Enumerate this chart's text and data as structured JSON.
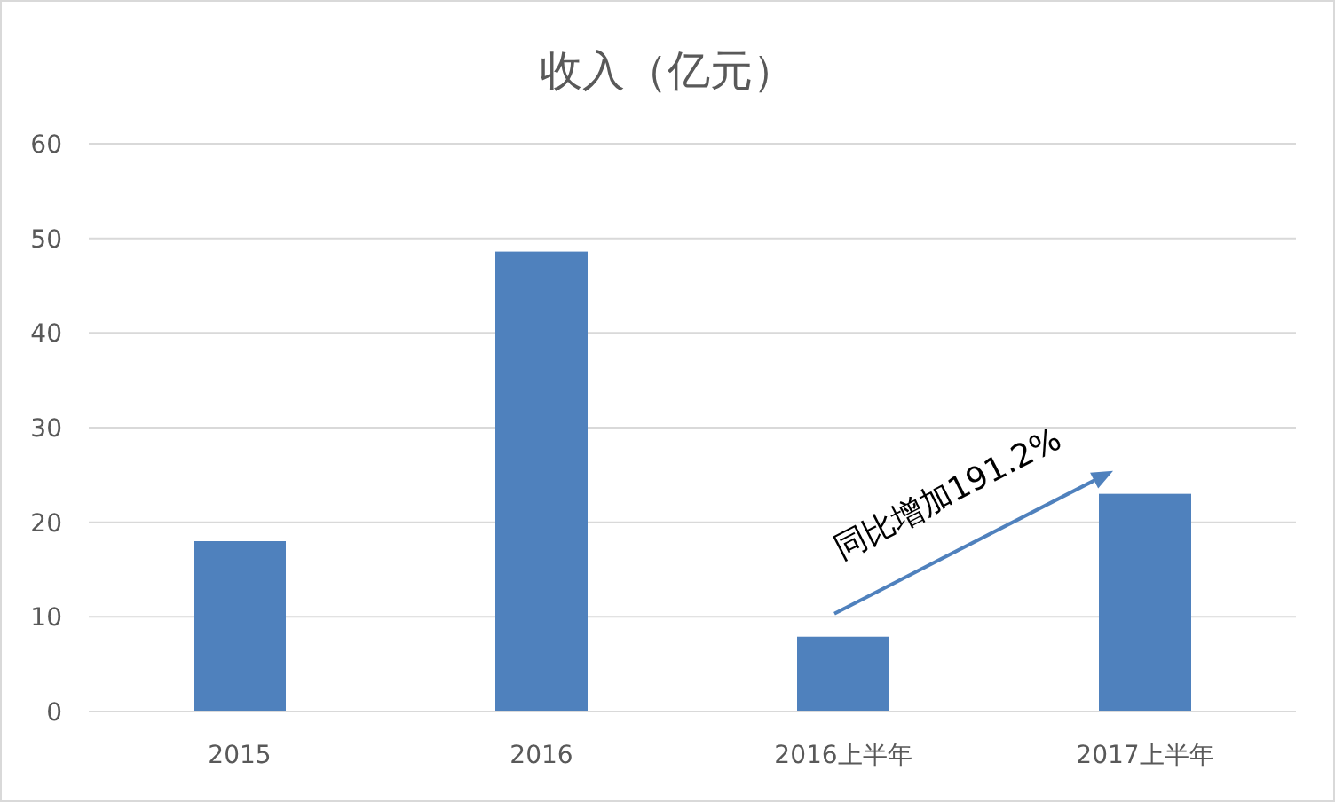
{
  "chart_data": {
    "type": "bar",
    "title": "收入（亿元）",
    "categories": [
      "2015",
      "2016",
      "2016上半年",
      "2017上半年"
    ],
    "values": [
      18.0,
      48.6,
      7.9,
      23.0
    ],
    "color": "#4f81bd",
    "ylim": [
      0,
      60
    ],
    "yticks": [
      0,
      10,
      20,
      30,
      40,
      50,
      60
    ],
    "grid": "y",
    "annotations": [
      "同比增加191.2%"
    ]
  }
}
